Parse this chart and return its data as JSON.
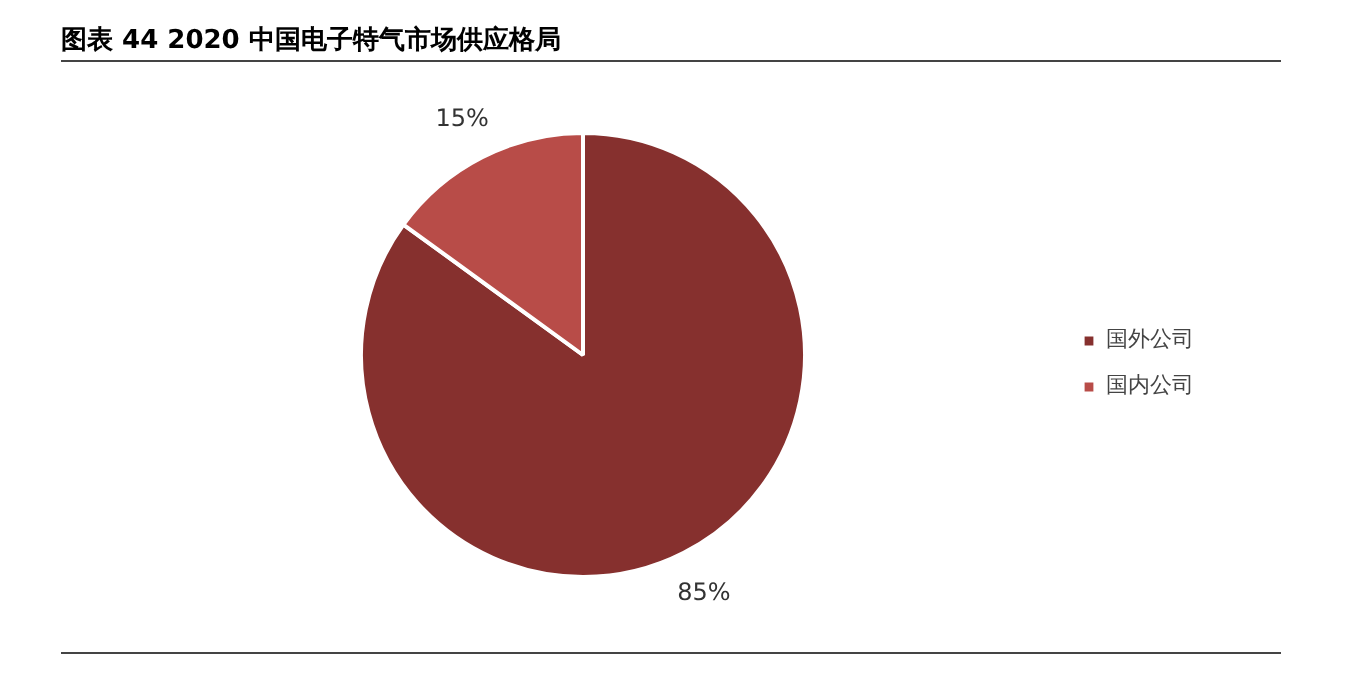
{
  "chart_data": {
    "type": "pie",
    "title": "图表 44 2020 中国电子特气市场供应格局",
    "categories": [
      "国外公司",
      "国内公司"
    ],
    "values": [
      85,
      15
    ],
    "colors": [
      "#86302e",
      "#b84c48"
    ],
    "value_labels": [
      "85%",
      "15%"
    ],
    "legend": "right"
  }
}
